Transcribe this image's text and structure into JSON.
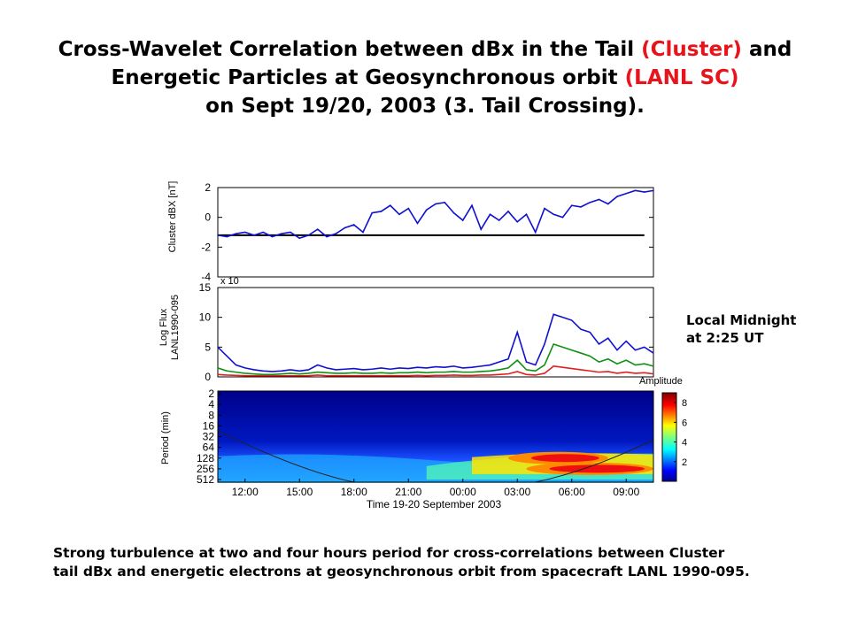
{
  "title": {
    "line1_a": "Cross-Wavelet Correlation between dBx in the Tail ",
    "line1_red": "(Cluster)",
    "line1_b": " and",
    "line2_a": "Energetic Particles at Geosynchronous orbit ",
    "line2_red": "(LANL SC)",
    "line3": "on Sept 19/20, 2003 (3. Tail Crossing)."
  },
  "note": {
    "line1": "Local Midnight",
    "line2": "at 2:25 UT"
  },
  "caption": {
    "line1": "Strong turbulence at two and four hours period for cross-correlations between Cluster",
    "line2": "tail dBx and energetic electrons at geosynchronous orbit from spacecraft LANL 1990-095."
  },
  "colors": {
    "title_red": "#e8141b",
    "blue": "#1010d0",
    "green": "#109010",
    "red": "#e02020"
  },
  "chart_data": [
    {
      "type": "line",
      "ylabel": "Cluster dBX [nT]",
      "ylim": [
        -4,
        2
      ],
      "yticks": [
        "2",
        "0",
        "-2",
        "-4"
      ],
      "grid": false,
      "reference_line_y": -1.2,
      "x_hours": [
        10.5,
        11,
        11.5,
        12,
        12.5,
        13,
        13.5,
        14,
        14.5,
        15,
        15.5,
        16,
        16.5,
        17,
        17.5,
        18,
        18.5,
        19,
        19.5,
        20,
        20.5,
        21,
        21.5,
        22,
        22.5,
        23,
        23.5,
        24,
        24.5,
        25,
        25.5,
        26,
        26.5,
        27,
        27.5,
        28,
        28.5,
        29,
        29.5,
        30,
        30.5,
        31,
        31.5,
        32,
        32.5,
        33,
        33.5,
        34,
        34.5
      ],
      "series": [
        {
          "values": [
            -1.2,
            -1.3,
            -1.1,
            -1.0,
            -1.2,
            -1.0,
            -1.3,
            -1.1,
            -1.0,
            -1.4,
            -1.2,
            -0.8,
            -1.3,
            -1.1,
            -0.7,
            -0.5,
            -1.0,
            0.3,
            0.4,
            0.8,
            0.2,
            0.6,
            -0.4,
            0.5,
            0.9,
            1.0,
            0.3,
            -0.2,
            0.8,
            -0.8,
            0.2,
            -0.2,
            0.4,
            -0.3,
            0.2,
            -1.0,
            0.6,
            0.2,
            0.0,
            0.8,
            0.7,
            1.0,
            1.2,
            0.9,
            1.4,
            1.6,
            1.8,
            1.7,
            1.8
          ]
        }
      ]
    },
    {
      "type": "line",
      "ylabel": "Log Flux LANL1990-095",
      "y_exponent_label": "x 10",
      "ylim": [
        0,
        15
      ],
      "yticks": [
        "15",
        "10",
        "5",
        "0"
      ],
      "grid": false,
      "x_hours": [
        10.5,
        11,
        11.5,
        12,
        12.5,
        13,
        13.5,
        14,
        14.5,
        15,
        15.5,
        16,
        16.5,
        17,
        17.5,
        18,
        18.5,
        19,
        19.5,
        20,
        20.5,
        21,
        21.5,
        22,
        22.5,
        23,
        23.5,
        24,
        24.5,
        25,
        25.5,
        26,
        26.5,
        27,
        27.5,
        28,
        28.5,
        29,
        29.5,
        30,
        30.5,
        31,
        31.5,
        32,
        32.5,
        33,
        33.5,
        34,
        34.5
      ],
      "series": [
        {
          "values": [
            5,
            3.5,
            2,
            1.5,
            1.2,
            1.0,
            0.9,
            1.0,
            1.2,
            1.0,
            1.2,
            2.0,
            1.5,
            1.2,
            1.3,
            1.4,
            1.2,
            1.3,
            1.5,
            1.3,
            1.5,
            1.4,
            1.6,
            1.5,
            1.7,
            1.6,
            1.8,
            1.5,
            1.6,
            1.8,
            2.0,
            2.5,
            3.0,
            7.5,
            2.5,
            2.0,
            5.5,
            10.5,
            10.0,
            9.5,
            8.0,
            7.5,
            5.5,
            6.5,
            4.5,
            6.0,
            4.5,
            5.0,
            4.0
          ]
        },
        {
          "values": [
            1.5,
            1.0,
            0.8,
            0.6,
            0.5,
            0.4,
            0.4,
            0.5,
            0.6,
            0.5,
            0.6,
            0.8,
            0.7,
            0.6,
            0.6,
            0.7,
            0.6,
            0.6,
            0.7,
            0.6,
            0.7,
            0.7,
            0.8,
            0.7,
            0.8,
            0.8,
            0.9,
            0.8,
            0.8,
            0.9,
            1.0,
            1.2,
            1.5,
            2.8,
            1.2,
            1.0,
            2.0,
            5.5,
            5.0,
            4.5,
            4.0,
            3.5,
            2.5,
            3.0,
            2.2,
            2.8,
            2.0,
            2.2,
            1.8
          ]
        },
        {
          "values": [
            0.4,
            0.3,
            0.25,
            0.2,
            0.2,
            0.2,
            0.2,
            0.2,
            0.2,
            0.2,
            0.2,
            0.3,
            0.2,
            0.2,
            0.2,
            0.2,
            0.2,
            0.2,
            0.2,
            0.2,
            0.2,
            0.2,
            0.25,
            0.2,
            0.25,
            0.25,
            0.3,
            0.25,
            0.25,
            0.3,
            0.3,
            0.4,
            0.5,
            0.9,
            0.4,
            0.3,
            0.6,
            1.8,
            1.6,
            1.4,
            1.2,
            1.0,
            0.8,
            0.9,
            0.6,
            0.8,
            0.6,
            0.7,
            0.5
          ]
        }
      ]
    },
    {
      "type": "heatmap",
      "ylabel": "Period (min)",
      "xlabel": "Time 19-20 September 2003",
      "yticks": [
        "2",
        "4",
        "8",
        "16",
        "32",
        "64",
        "128",
        "256",
        "512"
      ],
      "xticks": [
        "12:00",
        "15:00",
        "18:00",
        "21:00",
        "00:00",
        "03:00",
        "06:00",
        "09:00"
      ],
      "xlim_hours": [
        10.5,
        34.5
      ],
      "colorbar": {
        "label": "Amplitude",
        "ticks": [
          "8",
          "6",
          "4",
          "2"
        ],
        "range": [
          0,
          9
        ]
      },
      "high_amplitude_regions": [
        {
          "t_start": 26.5,
          "t_end": 32.0,
          "period_min": 128,
          "amplitude": 9
        },
        {
          "t_start": 27.5,
          "t_end": 34.5,
          "period_min": 256,
          "amplitude": 9
        }
      ]
    }
  ]
}
